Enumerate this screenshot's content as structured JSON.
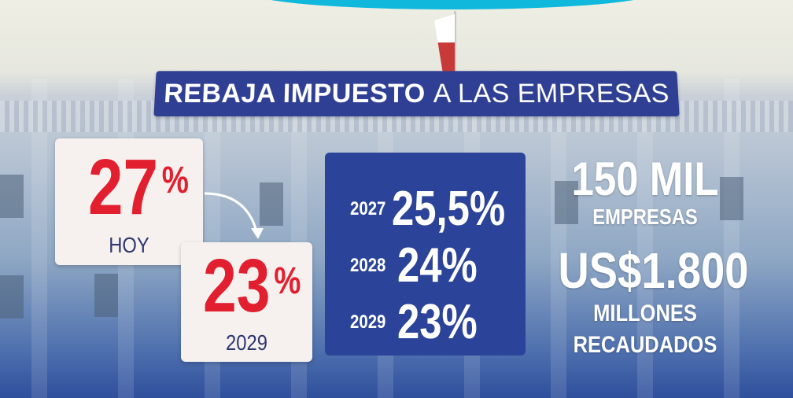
{
  "banner": {
    "bold": "REBAJA IMPUESTO",
    "rest": "A LAS EMPRESAS"
  },
  "today": {
    "value": "27",
    "unit": "%",
    "label": "HOY"
  },
  "target": {
    "value": "23",
    "unit": "%",
    "label": "2029"
  },
  "schedule": [
    {
      "year": "2027",
      "rate": "25,5%"
    },
    {
      "year": "2028",
      "rate": "24%"
    },
    {
      "year": "2029",
      "rate": "23%"
    }
  ],
  "companies": {
    "value": "150 MIL",
    "label": "EMPRESAS"
  },
  "revenue": {
    "value": "US$1.800",
    "line1": "MILLONES",
    "line2": "RECAUDADOS"
  }
}
